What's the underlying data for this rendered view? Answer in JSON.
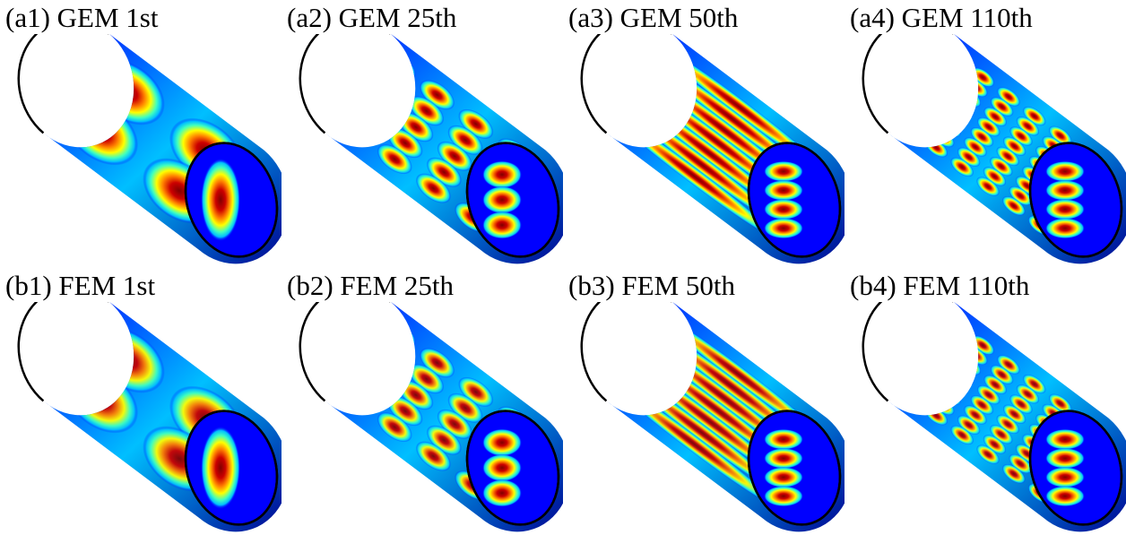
{
  "figure": {
    "panels": [
      {
        "label": "(a1) GEM 1st",
        "method": "GEM",
        "mode": "1st",
        "mode_number": 1,
        "axial_lobes": 2,
        "circ_lobes": 2,
        "style": "smooth"
      },
      {
        "label": "(a2) GEM 25th",
        "method": "GEM",
        "mode": "25th",
        "mode_number": 25,
        "axial_lobes": 4,
        "circ_lobes": 5,
        "style": "bulged"
      },
      {
        "label": "(a3) GEM 50th",
        "method": "GEM",
        "mode": "50th",
        "mode_number": 50,
        "axial_lobes": 1,
        "circ_lobes": 7,
        "style": "striped"
      },
      {
        "label": "(a4) GEM 110th",
        "method": "GEM",
        "mode": "110th",
        "mode_number": 110,
        "axial_lobes": 6,
        "circ_lobes": 8,
        "style": "bulged"
      },
      {
        "label": "(b1) FEM 1st",
        "method": "FEM",
        "mode": "1st",
        "mode_number": 1,
        "axial_lobes": 2,
        "circ_lobes": 2,
        "style": "smooth"
      },
      {
        "label": "(b2) FEM 25th",
        "method": "FEM",
        "mode": "25th",
        "mode_number": 25,
        "axial_lobes": 4,
        "circ_lobes": 5,
        "style": "bulged"
      },
      {
        "label": "(b3) FEM 50th",
        "method": "FEM",
        "mode": "50th",
        "mode_number": 50,
        "axial_lobes": 1,
        "circ_lobes": 7,
        "style": "striped"
      },
      {
        "label": "(b4) FEM 110th",
        "method": "FEM",
        "mode": "110th",
        "mode_number": 110,
        "axial_lobes": 6,
        "circ_lobes": 8,
        "style": "bulged"
      }
    ],
    "colormap": [
      "#00008f",
      "#0000ff",
      "#00bfff",
      "#40ffbf",
      "#ffff00",
      "#ff8000",
      "#cc0000",
      "#800000"
    ],
    "colormap_name": "jet"
  }
}
